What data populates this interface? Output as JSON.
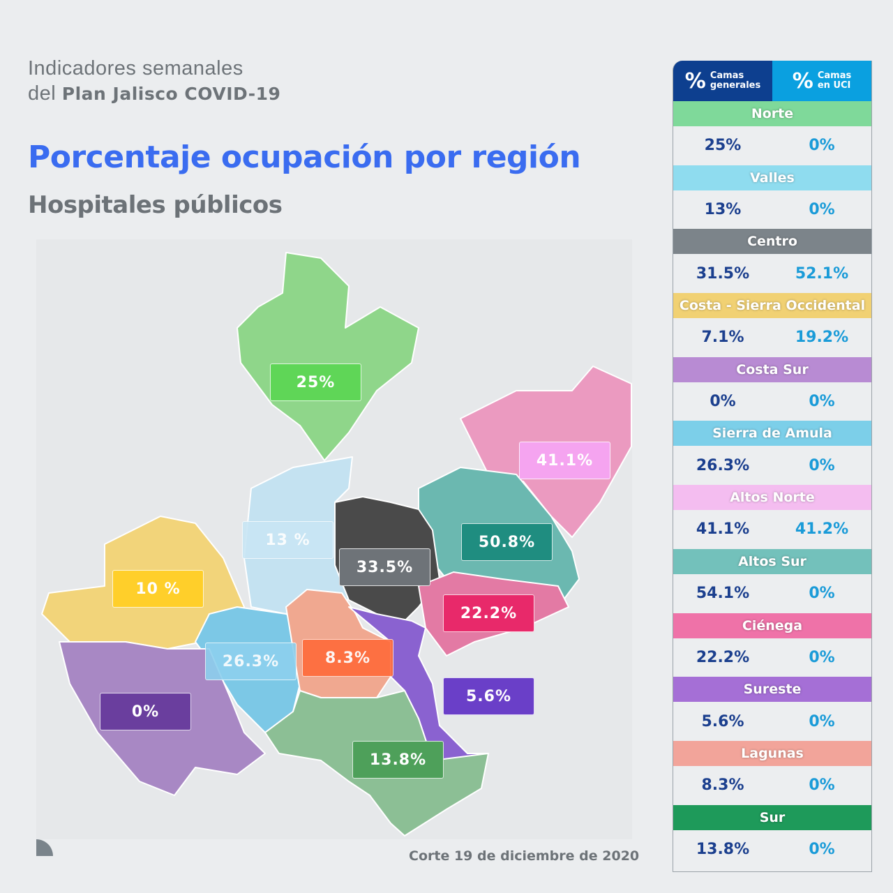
{
  "header": {
    "kicker_line1": "Indicadores semanales",
    "kicker_line2_prefix": "del ",
    "kicker_line2_bold": "Plan Jalisco COVID-19",
    "title": "Porcentaje ocupación por región",
    "subtitle": "Hospitales públicos"
  },
  "map": {
    "regions": [
      {
        "name": "Norte",
        "color": "#8fd68a",
        "label": "25%",
        "label_color": "#5fd657"
      },
      {
        "name": "Altos Norte",
        "color": "#eb9ac0",
        "label": "41.1%",
        "label_color": "#f5a4f0"
      },
      {
        "name": "Altos Sur",
        "color": "#6bb8b0",
        "label": "50.8%",
        "label_color": "#1f8d80"
      },
      {
        "name": "Valles",
        "color": "#c4e2f1",
        "label": "13 %",
        "label_color": "#c9e6f5"
      },
      {
        "name": "Centro",
        "color": "#4a4a4a",
        "label": "33.5%",
        "label_color": "#6e7378"
      },
      {
        "name": "Costa - Sierra Occidental",
        "color": "#f2d47a",
        "label": "10 %",
        "label_color": "#ffcf2a"
      },
      {
        "name": "Ciénega",
        "color": "#e37aa4",
        "label": "22.2%",
        "label_color": "#e8296a"
      },
      {
        "name": "Sierra de Amula",
        "color": "#7cc8e6",
        "label": "26.3%",
        "label_color": "#8dd0ee"
      },
      {
        "name": "Lagunas",
        "color": "#f0a890",
        "label": "8.3%",
        "label_color": "#ff6a3a"
      },
      {
        "name": "Sureste",
        "color": "#8a62d0",
        "label": "5.6%",
        "label_color": "#6a3fc8"
      },
      {
        "name": "Costa Sur",
        "color": "#a888c4",
        "label": "0%",
        "label_color": "#6a3e9e"
      },
      {
        "name": "Sur",
        "color": "#8cbf95",
        "label": "13.8%",
        "label_color": "#4ea05a"
      }
    ]
  },
  "footer": {
    "cutoff": "Corte 19 de diciembre de 2020"
  },
  "table": {
    "col_general": {
      "symbol": "%",
      "label_line1": "Camas",
      "label_line2": "generales",
      "color": "#0d3f8f"
    },
    "col_uci": {
      "symbol": "%",
      "label_line1": "Camas",
      "label_line2": "en UCI",
      "color": "#0aa0e0"
    },
    "rows": [
      {
        "region": "Norte",
        "color": "#7fd99a",
        "general": "25%",
        "uci": "0%"
      },
      {
        "region": "Valles",
        "color": "#8fdcef",
        "general": "13%",
        "uci": "0%"
      },
      {
        "region": "Centro",
        "color": "#7c848a",
        "general": "31.5%",
        "uci": "52.1%"
      },
      {
        "region": "Costa - Sierra Occidental",
        "color": "#f1d173",
        "general": "7.1%",
        "uci": "19.2%"
      },
      {
        "region": "Costa Sur",
        "color": "#b88bd3",
        "general": "0%",
        "uci": "0%"
      },
      {
        "region": "Sierra de Amula",
        "color": "#7ccfe9",
        "general": "26.3%",
        "uci": "0%"
      },
      {
        "region": "Altos Norte",
        "color": "#f4bdf0",
        "general": "41.1%",
        "uci": "41.2%"
      },
      {
        "region": "Altos Sur",
        "color": "#73c1bb",
        "general": "54.1%",
        "uci": "0%"
      },
      {
        "region": "Ciénega",
        "color": "#ef72a8",
        "general": "22.2%",
        "uci": "0%"
      },
      {
        "region": "Sureste",
        "color": "#a56fd6",
        "general": "5.6%",
        "uci": "0%"
      },
      {
        "region": "Lagunas",
        "color": "#f2a49a",
        "general": "8.3%",
        "uci": "0%"
      },
      {
        "region": "Sur",
        "color": "#1e9a5a",
        "general": "13.8%",
        "uci": "0%"
      }
    ]
  }
}
